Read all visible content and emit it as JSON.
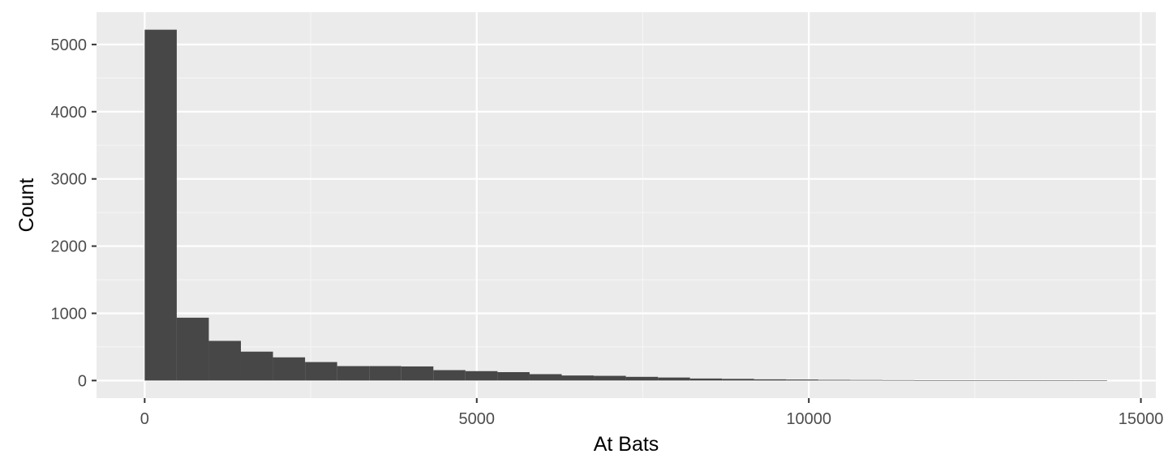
{
  "chart_data": {
    "type": "bar",
    "subtype": "histogram",
    "xlabel": "At Bats",
    "ylabel": "Count",
    "xlim": [
      -725,
      15225
    ],
    "ylim": [
      -261,
      5481
    ],
    "x_ticks": [
      0,
      5000,
      10000,
      15000
    ],
    "x_tick_labels": [
      "0",
      "5000",
      "10000",
      "15000"
    ],
    "y_ticks": [
      0,
      1000,
      2000,
      3000,
      4000,
      5000
    ],
    "y_tick_labels": [
      "0",
      "1000",
      "2000",
      "3000",
      "4000",
      "5000"
    ],
    "grid": true,
    "bin_width": 483,
    "bins": [
      {
        "start": 0,
        "end": 483,
        "count": 5220
      },
      {
        "start": 483,
        "end": 966,
        "count": 935
      },
      {
        "start": 966,
        "end": 1449,
        "count": 590
      },
      {
        "start": 1449,
        "end": 1932,
        "count": 430
      },
      {
        "start": 1932,
        "end": 2415,
        "count": 345
      },
      {
        "start": 2415,
        "end": 2898,
        "count": 275
      },
      {
        "start": 2898,
        "end": 3381,
        "count": 215
      },
      {
        "start": 3381,
        "end": 3864,
        "count": 215
      },
      {
        "start": 3864,
        "end": 4347,
        "count": 210
      },
      {
        "start": 4347,
        "end": 4830,
        "count": 155
      },
      {
        "start": 4830,
        "end": 5313,
        "count": 140
      },
      {
        "start": 5313,
        "end": 5796,
        "count": 125
      },
      {
        "start": 5796,
        "end": 6279,
        "count": 95
      },
      {
        "start": 6279,
        "end": 6762,
        "count": 75
      },
      {
        "start": 6762,
        "end": 7245,
        "count": 70
      },
      {
        "start": 7245,
        "end": 7728,
        "count": 55
      },
      {
        "start": 7728,
        "end": 8211,
        "count": 45
      },
      {
        "start": 8211,
        "end": 8694,
        "count": 30
      },
      {
        "start": 8694,
        "end": 9177,
        "count": 25
      },
      {
        "start": 9177,
        "end": 9660,
        "count": 18
      },
      {
        "start": 9660,
        "end": 10143,
        "count": 15
      },
      {
        "start": 10143,
        "end": 10626,
        "count": 10
      },
      {
        "start": 10626,
        "end": 11109,
        "count": 8
      },
      {
        "start": 11109,
        "end": 11592,
        "count": 6
      },
      {
        "start": 11592,
        "end": 12075,
        "count": 3
      },
      {
        "start": 12075,
        "end": 12558,
        "count": 2
      },
      {
        "start": 12558,
        "end": 13041,
        "count": 1
      },
      {
        "start": 13041,
        "end": 13524,
        "count": 1
      },
      {
        "start": 13524,
        "end": 14007,
        "count": 0
      },
      {
        "start": 14007,
        "end": 14490,
        "count": 1
      }
    ],
    "colors": {
      "panel_background": "#ebebeb",
      "grid_major": "#ffffff",
      "grid_minor": "#f5f5f5",
      "bar_fill": "#474747"
    }
  }
}
